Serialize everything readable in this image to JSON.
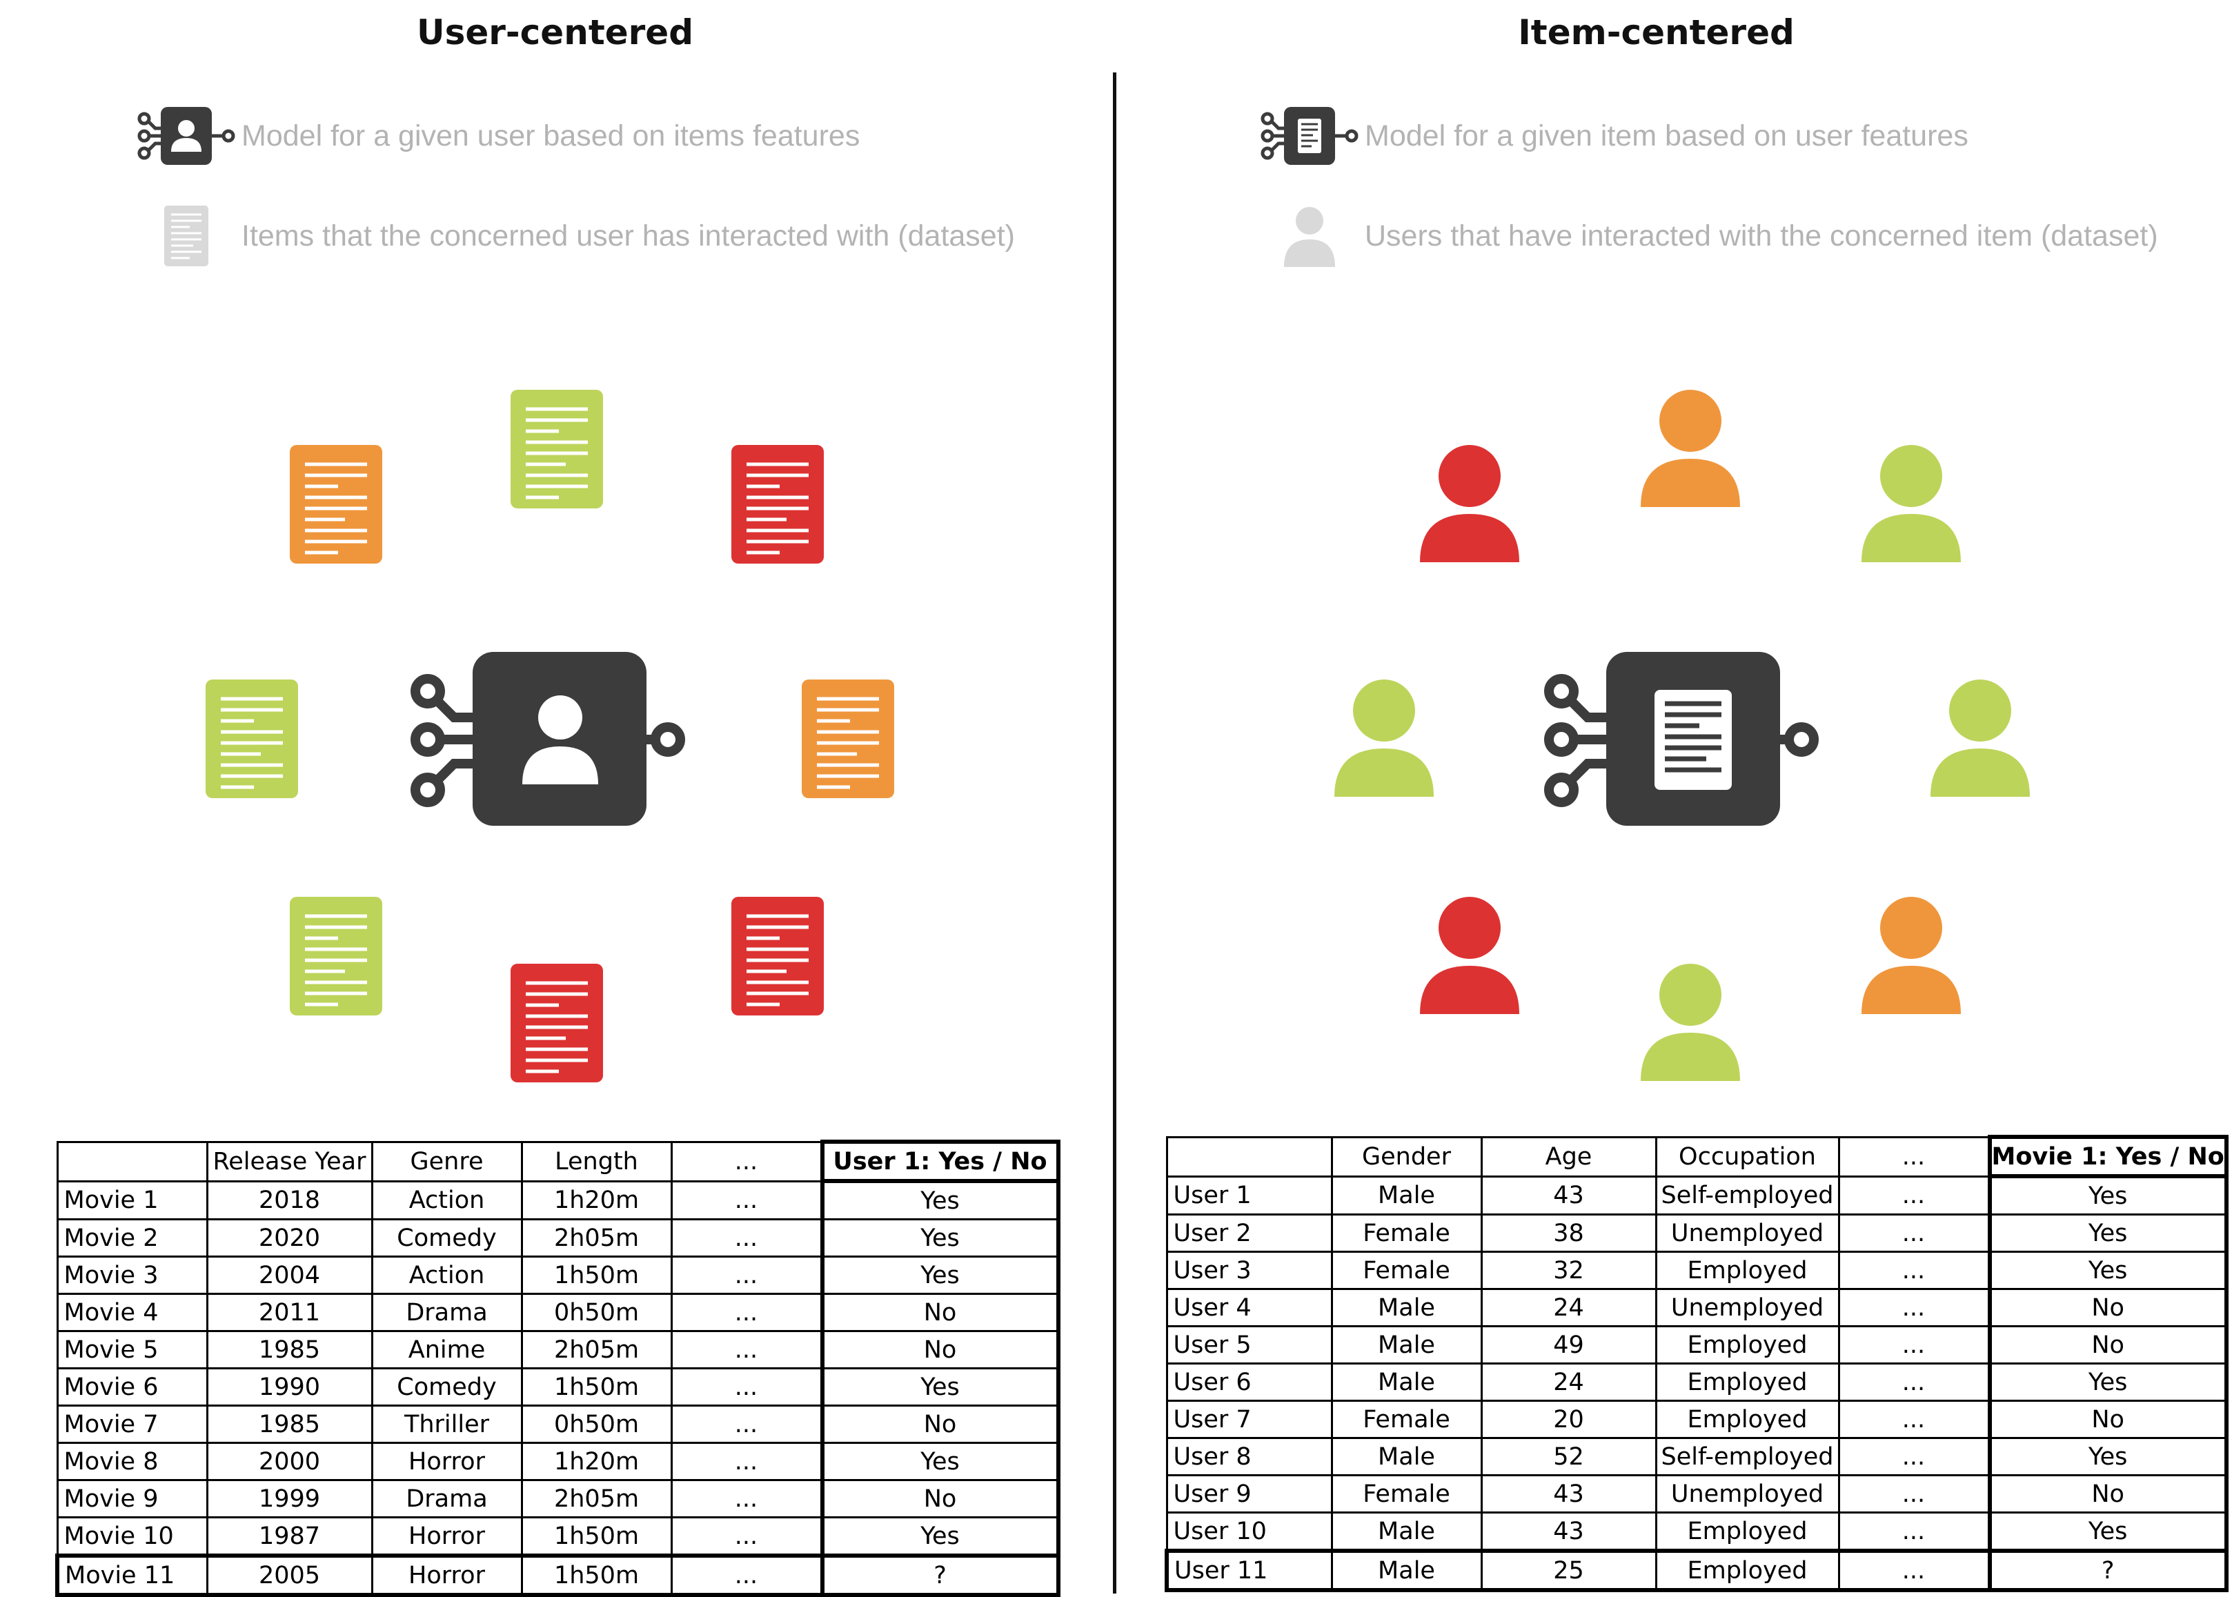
{
  "colors": {
    "green": "#bcd45a",
    "orange": "#ef963c",
    "red": "#dd3232",
    "dark": "#3c3c3c",
    "legend_gray": "#b3b3b3"
  },
  "left": {
    "title": "User-centered",
    "legend": [
      {
        "icon": "user-model-chip-icon",
        "text": "Model for a given user based on items features"
      },
      {
        "icon": "document-icon",
        "text": "Items that the concerned user has interacted with (dataset)"
      }
    ],
    "diagram": {
      "center": "user-model-chip-icon",
      "items": [
        {
          "icon": "document-icon",
          "color": "orange"
        },
        {
          "icon": "document-icon",
          "color": "green"
        },
        {
          "icon": "document-icon",
          "color": "red"
        },
        {
          "icon": "document-icon",
          "color": "green"
        },
        {
          "icon": "document-icon",
          "color": "orange"
        },
        {
          "icon": "document-icon",
          "color": "green"
        },
        {
          "icon": "document-icon",
          "color": "red"
        },
        {
          "icon": "document-icon",
          "color": "red"
        }
      ]
    },
    "table": {
      "headers": [
        "",
        "Release Year",
        "Genre",
        "Length",
        "...",
        "User 1: Yes / No"
      ],
      "rows": [
        [
          "Movie 1",
          "2018",
          "Action",
          "1h20m",
          "...",
          "Yes"
        ],
        [
          "Movie 2",
          "2020",
          "Comedy",
          "2h05m",
          "...",
          "Yes"
        ],
        [
          "Movie 3",
          "2004",
          "Action",
          "1h50m",
          "...",
          "Yes"
        ],
        [
          "Movie 4",
          "2011",
          "Drama",
          "0h50m",
          "...",
          "No"
        ],
        [
          "Movie 5",
          "1985",
          "Anime",
          "2h05m",
          "...",
          "No"
        ],
        [
          "Movie 6",
          "1990",
          "Comedy",
          "1h50m",
          "...",
          "Yes"
        ],
        [
          "Movie 7",
          "1985",
          "Thriller",
          "0h50m",
          "...",
          "No"
        ],
        [
          "Movie 8",
          "2000",
          "Horror",
          "1h20m",
          "...",
          "Yes"
        ],
        [
          "Movie 9",
          "1999",
          "Drama",
          "2h05m",
          "...",
          "No"
        ],
        [
          "Movie 10",
          "1987",
          "Horror",
          "1h50m",
          "...",
          "Yes"
        ],
        [
          "Movie 11",
          "2005",
          "Horror",
          "1h50m",
          "...",
          "?"
        ]
      ]
    }
  },
  "right": {
    "title": "Item-centered",
    "legend": [
      {
        "icon": "item-model-chip-icon",
        "text": "Model for a given item based on user features"
      },
      {
        "icon": "person-icon",
        "text": "Users that have interacted with the concerned item (dataset)"
      }
    ],
    "diagram": {
      "center": "item-model-chip-icon",
      "users": [
        {
          "icon": "person-icon",
          "color": "red"
        },
        {
          "icon": "person-icon",
          "color": "orange"
        },
        {
          "icon": "person-icon",
          "color": "green"
        },
        {
          "icon": "person-icon",
          "color": "green"
        },
        {
          "icon": "person-icon",
          "color": "green"
        },
        {
          "icon": "person-icon",
          "color": "red"
        },
        {
          "icon": "person-icon",
          "color": "green"
        },
        {
          "icon": "person-icon",
          "color": "orange"
        }
      ]
    },
    "table": {
      "headers": [
        "",
        "Gender",
        "Age",
        "Occupation",
        "...",
        "Movie 1: Yes / No"
      ],
      "rows": [
        [
          "User 1",
          "Male",
          "43",
          "Self-employed",
          "...",
          "Yes"
        ],
        [
          "User 2",
          "Female",
          "38",
          "Unemployed",
          "...",
          "Yes"
        ],
        [
          "User 3",
          "Female",
          "32",
          "Employed",
          "...",
          "Yes"
        ],
        [
          "User 4",
          "Male",
          "24",
          "Unemployed",
          "...",
          "No"
        ],
        [
          "User 5",
          "Male",
          "49",
          "Employed",
          "...",
          "No"
        ],
        [
          "User 6",
          "Male",
          "24",
          "Employed",
          "...",
          "Yes"
        ],
        [
          "User 7",
          "Female",
          "20",
          "Employed",
          "...",
          "No"
        ],
        [
          "User 8",
          "Male",
          "52",
          "Self-employed",
          "...",
          "Yes"
        ],
        [
          "User 9",
          "Female",
          "43",
          "Unemployed",
          "...",
          "No"
        ],
        [
          "User 10",
          "Male",
          "43",
          "Employed",
          "...",
          "Yes"
        ],
        [
          "User 11",
          "Male",
          "25",
          "Employed",
          "...",
          "?"
        ]
      ]
    }
  }
}
